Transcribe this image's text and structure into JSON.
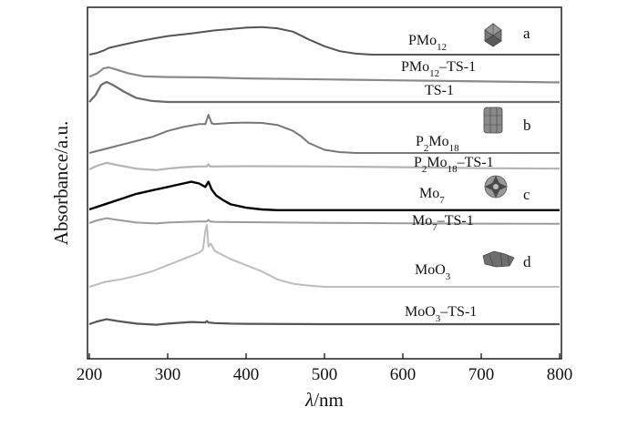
{
  "chart_data": {
    "type": "line",
    "title": "",
    "xlabel_italic": "λ",
    "xlabel_rest": "/nm",
    "ylabel": "Absorbance/a.u.",
    "xlim": [
      200,
      800
    ],
    "x_ticks": [
      "200",
      "300",
      "400",
      "500",
      "600",
      "700",
      "800"
    ],
    "y_ticks": "none",
    "grid": false,
    "legend": "none (each trace labeled inline)",
    "panel_letters": [
      "a",
      "b",
      "c",
      "d"
    ],
    "series": [
      {
        "name": "PMo12",
        "label_base": "PMo",
        "label_sub": "12",
        "label_rest": "",
        "color": "#555555",
        "x": [
          200,
          210,
          218,
          225,
          240,
          260,
          280,
          300,
          330,
          360,
          400,
          420,
          440,
          460,
          480,
          500,
          520,
          540,
          560,
          600,
          700,
          800
        ],
        "y": [
          0.0,
          0.05,
          0.12,
          0.2,
          0.28,
          0.38,
          0.47,
          0.55,
          0.63,
          0.72,
          0.8,
          0.82,
          0.78,
          0.68,
          0.45,
          0.25,
          0.1,
          0.03,
          0.0,
          0.0,
          0.0,
          0.0
        ]
      },
      {
        "name": "PMo12-TS-1",
        "label_base": "PMo",
        "label_sub": "12",
        "label_rest": "–TS-1",
        "color": "#8a8a8a",
        "x": [
          200,
          210,
          218,
          225,
          235,
          250,
          270,
          300,
          350,
          400,
          500,
          600,
          700,
          800
        ],
        "y": [
          0.03,
          0.2,
          0.45,
          0.5,
          0.38,
          0.2,
          0.05,
          0.02,
          0.0,
          -0.05,
          -0.1,
          -0.15,
          -0.2,
          -0.25
        ]
      },
      {
        "name": "TS-1",
        "label_base": "TS-1",
        "label_sub": "",
        "label_rest": "",
        "color": "#6a6a6a",
        "x": [
          200,
          208,
          215,
          222,
          230,
          245,
          260,
          280,
          300,
          350,
          400,
          500,
          600,
          700,
          800
        ],
        "y": [
          0.0,
          0.35,
          0.85,
          1.0,
          0.85,
          0.5,
          0.2,
          0.05,
          0.0,
          0.0,
          0.0,
          0.0,
          0.0,
          0.0,
          0.0
        ]
      },
      {
        "name": "P2Mo18",
        "label_base": "P",
        "label_sub": "2",
        "label_mid": "Mo",
        "label_sub2": "18",
        "label_rest": "",
        "color": "#777777",
        "x": [
          200,
          220,
          240,
          260,
          280,
          300,
          320,
          340,
          348,
          352,
          356,
          360,
          380,
          400,
          420,
          440,
          460,
          470,
          480,
          500,
          520,
          540,
          600,
          700,
          800
        ],
        "y": [
          0.0,
          0.1,
          0.2,
          0.3,
          0.4,
          0.55,
          0.65,
          0.72,
          0.72,
          0.95,
          0.74,
          0.72,
          0.75,
          0.76,
          0.75,
          0.7,
          0.55,
          0.42,
          0.25,
          0.08,
          0.02,
          0.0,
          0.0,
          0.0,
          0.0
        ]
      },
      {
        "name": "P2Mo18-TS-1",
        "label_base": "P",
        "label_sub": "2",
        "label_mid": "Mo",
        "label_sub2": "18",
        "label_rest": "–TS-1",
        "color": "#b3b3b3",
        "x": [
          200,
          210,
          222,
          235,
          260,
          285,
          300,
          320,
          340,
          350,
          352,
          354,
          360,
          400,
          500,
          600,
          700,
          800
        ],
        "y": [
          0.0,
          0.25,
          0.45,
          0.3,
          0.05,
          -0.05,
          0.05,
          0.15,
          0.2,
          0.2,
          0.35,
          0.2,
          0.2,
          0.22,
          0.2,
          0.15,
          0.08,
          0.05
        ]
      },
      {
        "name": "Mo7",
        "label_base": "Mo",
        "label_sub": "7",
        "label_rest": "",
        "color": "#000000",
        "x": [
          200,
          220,
          240,
          260,
          280,
          300,
          320,
          330,
          340,
          348,
          352,
          356,
          362,
          370,
          380,
          400,
          420,
          440,
          460,
          500,
          600,
          700,
          800
        ],
        "y": [
          0.0,
          0.15,
          0.3,
          0.45,
          0.55,
          0.65,
          0.75,
          0.8,
          0.75,
          0.65,
          0.8,
          0.58,
          0.4,
          0.28,
          0.15,
          0.05,
          0.0,
          -0.02,
          -0.02,
          -0.02,
          -0.02,
          -0.02,
          -0.02
        ]
      },
      {
        "name": "Mo7-TS-1",
        "label_base": "Mo",
        "label_sub": "7",
        "label_rest": "–TS-1",
        "color": "#9a9a9a",
        "x": [
          200,
          210,
          222,
          235,
          260,
          285,
          300,
          340,
          350,
          352,
          354,
          360,
          400,
          500,
          600,
          700,
          800
        ],
        "y": [
          0.0,
          0.25,
          0.45,
          0.3,
          0.05,
          -0.03,
          0.05,
          0.15,
          0.15,
          0.3,
          0.15,
          0.12,
          0.08,
          0.02,
          -0.02,
          -0.05,
          -0.07
        ]
      },
      {
        "name": "MoO3",
        "label_base": "MoO",
        "label_sub": "3",
        "label_rest": "",
        "color": "#bdbdbd",
        "x": [
          200,
          220,
          240,
          260,
          280,
          300,
          320,
          340,
          345,
          348,
          350,
          352,
          355,
          360,
          380,
          400,
          420,
          440,
          460,
          480,
          500,
          600,
          700,
          800
        ],
        "y": [
          0.0,
          0.08,
          0.12,
          0.18,
          0.25,
          0.35,
          0.45,
          0.55,
          0.6,
          0.9,
          1.0,
          0.65,
          0.7,
          0.58,
          0.45,
          0.35,
          0.25,
          0.12,
          0.05,
          0.02,
          0.0,
          0.0,
          0.0,
          0.0
        ]
      },
      {
        "name": "MoO3-TS-1",
        "label_base": "MoO",
        "label_sub": "3",
        "label_rest": "–TS-1",
        "color": "#555555",
        "x": [
          200,
          210,
          222,
          235,
          260,
          285,
          300,
          330,
          348,
          350,
          352,
          360,
          380,
          400,
          500,
          600,
          700,
          800
        ],
        "y": [
          0.0,
          0.25,
          0.45,
          0.3,
          0.05,
          -0.05,
          0.05,
          0.2,
          0.15,
          0.28,
          0.15,
          0.1,
          0.05,
          0.03,
          0.0,
          0.0,
          0.0,
          0.0
        ]
      }
    ]
  }
}
